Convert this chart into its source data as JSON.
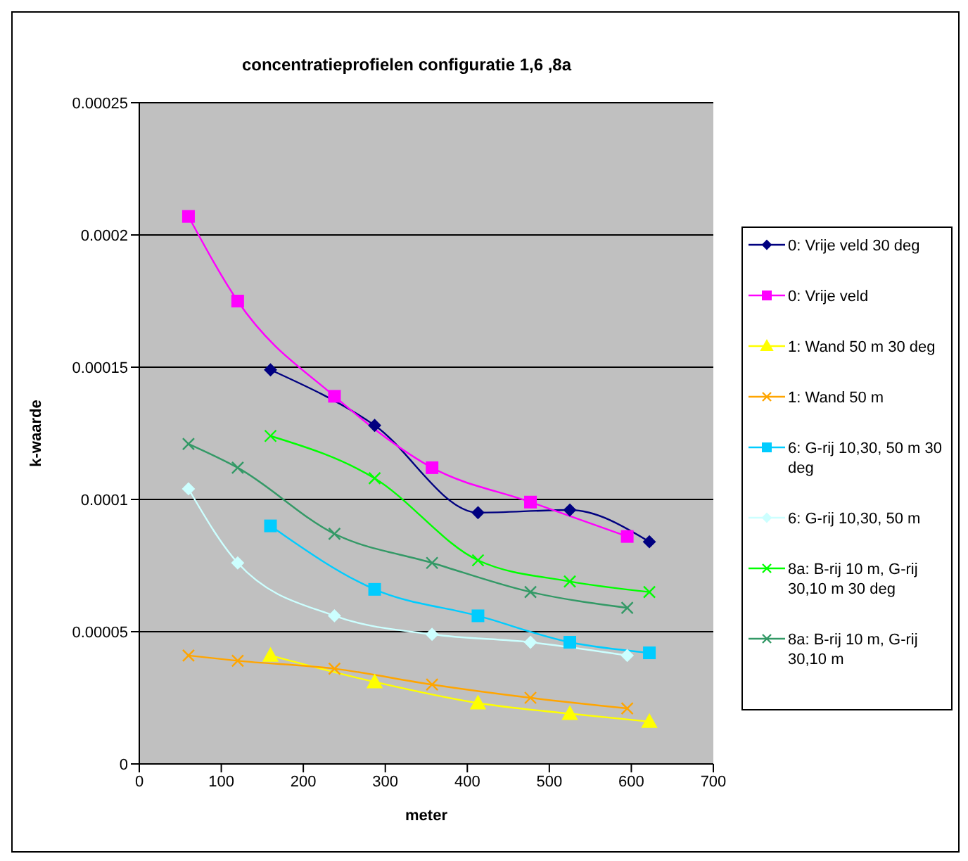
{
  "chart_data": {
    "type": "line",
    "title": "concentratieprofielen configuratie 1,6 ,8a",
    "xlabel": "meter",
    "ylabel": "k-waarde",
    "xlim": [
      0,
      700
    ],
    "xticks": [
      0,
      100,
      200,
      300,
      400,
      500,
      600,
      700
    ],
    "ylim": [
      0,
      0.00025
    ],
    "yticks": [
      0,
      {
        "value": 5e-05,
        "label": "0.00005"
      },
      0.0001,
      0.00015,
      0.0002,
      0.00025
    ],
    "grid": "y",
    "legend": "right",
    "line_style": "solid",
    "series": [
      {
        "name": "0: Vrije veld 30 deg",
        "color": "#000080",
        "marker": "diamond",
        "x": [
          160,
          287,
          413,
          525,
          622
        ],
        "values": [
          0.000149,
          0.000128,
          9.5e-05,
          9.6e-05,
          8.4e-05
        ]
      },
      {
        "name": "0: Vrije veld",
        "color": "#ff00ff",
        "marker": "square",
        "x": [
          60,
          120,
          238,
          357,
          477,
          595
        ],
        "values": [
          0.000207,
          0.000175,
          0.000139,
          0.000112,
          9.9e-05,
          8.6e-05
        ]
      },
      {
        "name": "1: Wand 50 m 30 deg",
        "color": "#ffff00",
        "marker": "triangle",
        "x": [
          160,
          287,
          413,
          525,
          622
        ],
        "values": [
          4.1e-05,
          3.1e-05,
          2.3e-05,
          1.9e-05,
          1.6e-05
        ]
      },
      {
        "name": "1: Wand 50 m",
        "color": "#ffa500",
        "marker": "cross",
        "x": [
          60,
          120,
          238,
          357,
          477,
          595
        ],
        "values": [
          4.1e-05,
          3.9e-05,
          3.6e-05,
          3e-05,
          2.5e-05,
          2.1e-05
        ]
      },
      {
        "name": "6: G-rij 10,30, 50 m 30 deg",
        "color": "#00ccff",
        "marker": "square",
        "x": [
          160,
          287,
          413,
          525,
          622
        ],
        "values": [
          9e-05,
          6.6e-05,
          5.6e-05,
          4.6e-05,
          4.2e-05
        ]
      },
      {
        "name": "6: G-rij 10,30, 50 m",
        "color": "#ccffff",
        "marker": "diamond",
        "x": [
          60,
          120,
          238,
          357,
          477,
          595
        ],
        "values": [
          0.000104,
          7.6e-05,
          5.6e-05,
          4.9e-05,
          4.6e-05,
          4.1e-05
        ]
      },
      {
        "name": "8a: B-rij 10 m, G-rij 30,10 m 30 deg",
        "color": "#00ff00",
        "marker": "cross",
        "x": [
          160,
          287,
          413,
          525,
          622
        ],
        "values": [
          0.000124,
          0.000108,
          7.7e-05,
          6.9e-05,
          6.5e-05
        ]
      },
      {
        "name": "8a: B-rij 10 m, G-rij 30,10 m",
        "color": "#339966",
        "marker": "cross",
        "x": [
          60,
          120,
          238,
          357,
          477,
          595
        ],
        "values": [
          0.000121,
          0.000112,
          8.7e-05,
          7.6e-05,
          6.5e-05,
          5.9e-05
        ]
      }
    ]
  }
}
